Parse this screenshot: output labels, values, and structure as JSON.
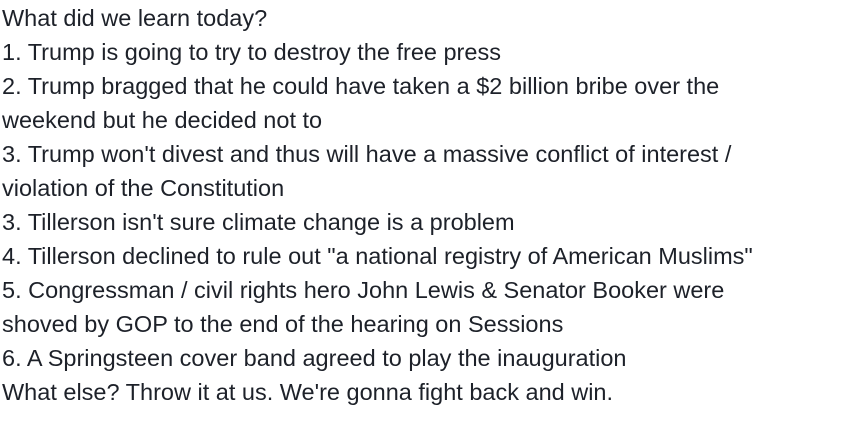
{
  "post": {
    "lines": [
      "What did we learn today?",
      "1. Trump is going to try to destroy the free press",
      "2. Trump bragged that he could have taken a $2 billion bribe over the",
      "weekend but he decided not to",
      "3. Trump won't divest and thus will have a massive conflict of interest /",
      "violation of the Constitution",
      "3. Tillerson isn't sure climate change is a problem",
      "4. Tillerson declined to rule out \"a national registry of American Muslims\"",
      "5. Congressman / civil rights hero John Lewis & Senator Booker were",
      "shoved by GOP to the end of the hearing on Sessions",
      "6. A Springsteen cover band agreed to play the inauguration",
      "What else? Throw it at us. We're gonna fight back and win."
    ],
    "text_color": "#1d2129",
    "background_color": "#ffffff"
  }
}
